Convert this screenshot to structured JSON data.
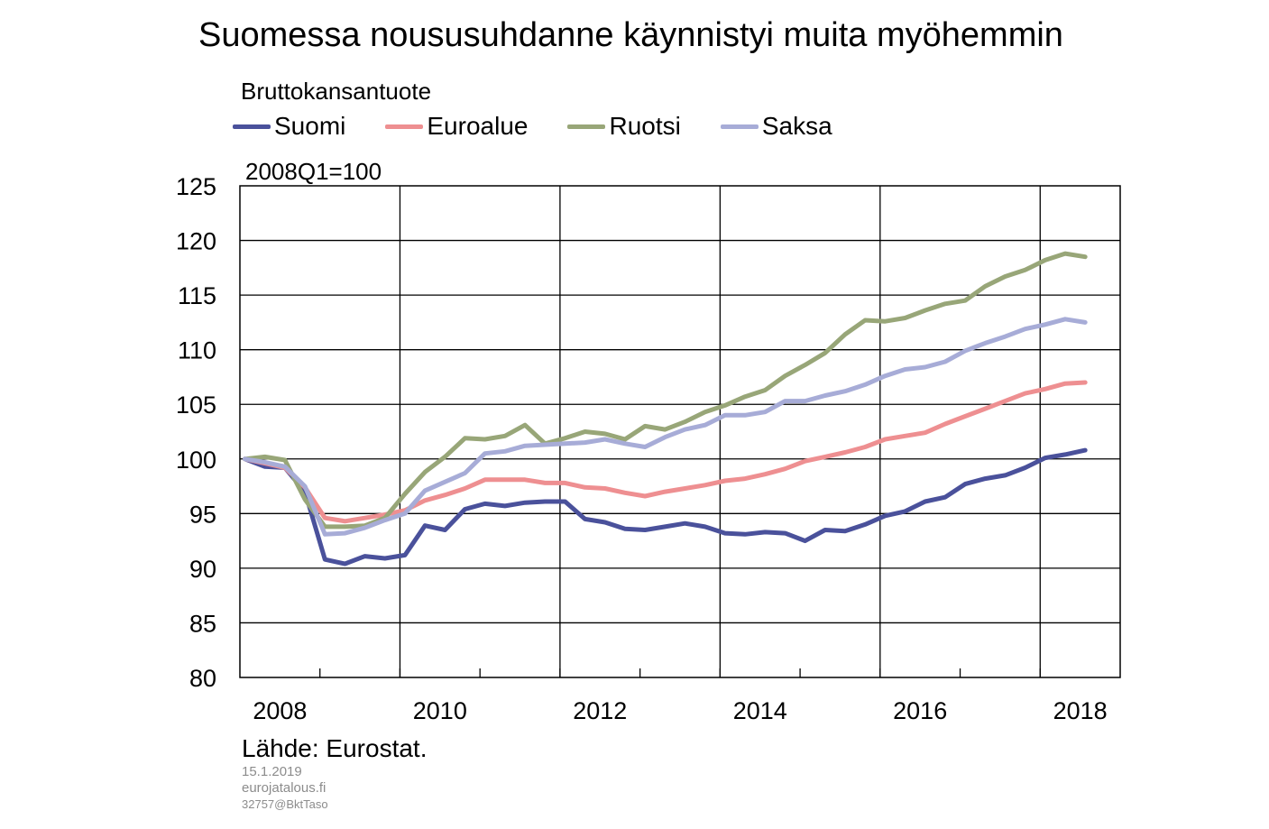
{
  "title": "Suomessa noususuhdanne käynnistyi muita myöhemmin",
  "subtitle": "Bruttokansantuote",
  "unit_label": "2008Q1=100",
  "source": "Lähde: Eurostat.",
  "date": "15.1.2019",
  "site": "eurojatalous.fi",
  "code": "32757@BktTaso",
  "chart_data": {
    "type": "line",
    "x_start": "2008Q1",
    "frequency": "quarterly",
    "xlim": [
      "2008",
      "2019"
    ],
    "x_ticks": [
      "2008",
      "2010",
      "2012",
      "2014",
      "2016",
      "2018"
    ],
    "ylim": [
      80,
      125
    ],
    "y_ticks": [
      80,
      85,
      90,
      95,
      100,
      105,
      110,
      115,
      120,
      125
    ],
    "grid": true,
    "legend_position": "top",
    "series": [
      {
        "name": "Suomi",
        "color": "#4a519b",
        "values": [
          100.0,
          99.3,
          99.2,
          97.0,
          90.8,
          90.4,
          91.1,
          90.9,
          91.2,
          93.9,
          93.5,
          95.4,
          95.9,
          95.7,
          96.0,
          96.1,
          96.1,
          94.5,
          94.2,
          93.6,
          93.5,
          93.8,
          94.1,
          93.8,
          93.2,
          93.1,
          93.3,
          93.2,
          92.5,
          93.5,
          93.4,
          94.0,
          94.8,
          95.2,
          96.1,
          96.5,
          97.7,
          98.2,
          98.5,
          99.2,
          100.1,
          100.4,
          100.8
        ]
      },
      {
        "name": "Euroalue",
        "color": "#ee8f91",
        "values": [
          100.0,
          99.6,
          99.2,
          97.4,
          94.6,
          94.3,
          94.6,
          94.9,
          95.3,
          96.2,
          96.7,
          97.3,
          98.1,
          98.1,
          98.1,
          97.8,
          97.8,
          97.4,
          97.3,
          96.9,
          96.6,
          97.0,
          97.3,
          97.6,
          98.0,
          98.2,
          98.6,
          99.1,
          99.8,
          100.2,
          100.6,
          101.1,
          101.8,
          102.1,
          102.4,
          103.2,
          103.9,
          104.6,
          105.3,
          106.0,
          106.4,
          106.9,
          107.0
        ]
      },
      {
        "name": "Ruotsi",
        "color": "#98a678",
        "values": [
          100.0,
          100.2,
          99.9,
          96.3,
          93.8,
          93.8,
          93.9,
          94.6,
          96.8,
          98.8,
          100.2,
          101.9,
          101.8,
          102.1,
          103.1,
          101.4,
          101.9,
          102.5,
          102.3,
          101.8,
          103.0,
          102.7,
          103.4,
          104.3,
          104.9,
          105.7,
          106.3,
          107.6,
          108.6,
          109.7,
          111.4,
          112.7,
          112.6,
          112.9,
          113.6,
          114.2,
          114.5,
          115.8,
          116.7,
          117.3,
          118.2,
          118.8,
          118.5
        ]
      },
      {
        "name": "Saksa",
        "color": "#a7acd7",
        "values": [
          100.0,
          99.7,
          99.3,
          97.5,
          93.1,
          93.2,
          93.7,
          94.4,
          95.0,
          97.1,
          97.9,
          98.7,
          100.5,
          100.7,
          101.2,
          101.3,
          101.4,
          101.5,
          101.8,
          101.4,
          101.1,
          102.0,
          102.7,
          103.1,
          104.0,
          104.0,
          104.3,
          105.3,
          105.3,
          105.8,
          106.2,
          106.8,
          107.6,
          108.2,
          108.4,
          108.9,
          109.9,
          110.6,
          111.2,
          111.9,
          112.3,
          112.8,
          112.5
        ]
      }
    ]
  }
}
